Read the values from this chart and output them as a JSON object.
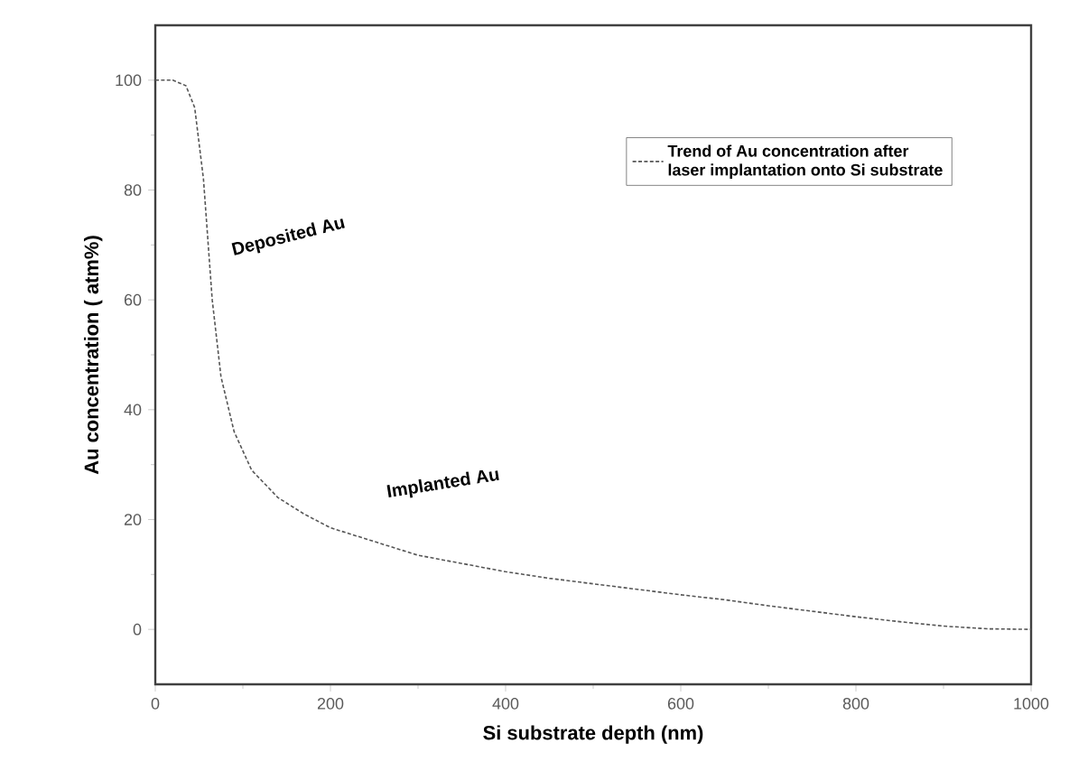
{
  "chart_data": {
    "type": "line",
    "xlabel": "Si substrate depth (nm)",
    "ylabel": "Au concentration ( atm%)",
    "x": [
      0,
      20,
      35,
      45,
      55,
      65,
      75,
      90,
      110,
      140,
      170,
      200,
      250,
      300,
      350,
      400,
      450,
      500,
      550,
      600,
      650,
      700,
      750,
      800,
      850,
      900,
      950,
      1000
    ],
    "series": [
      {
        "name": "Trend of Au concentration after laser implantation onto Si substrate",
        "color": "#555555",
        "line_style": "dashed",
        "values": [
          100,
          100,
          99,
          95,
          82,
          60,
          46,
          36,
          29,
          24,
          21,
          18.5,
          16,
          13.5,
          12,
          10.5,
          9.3,
          8.3,
          7.3,
          6.3,
          5.4,
          4.3,
          3.3,
          2.3,
          1.4,
          0.6,
          0.1,
          0
        ]
      }
    ],
    "annotations": [
      "Deposited Au",
      "Implanted Au"
    ],
    "xlim": [
      0,
      1000
    ],
    "ylim": [
      -10,
      110
    ],
    "xticks": [
      0,
      200,
      400,
      600,
      800,
      1000
    ],
    "yticks": [
      0,
      20,
      40,
      60,
      80,
      100
    ],
    "legend": "top right",
    "grid": false,
    "marker": "none"
  }
}
